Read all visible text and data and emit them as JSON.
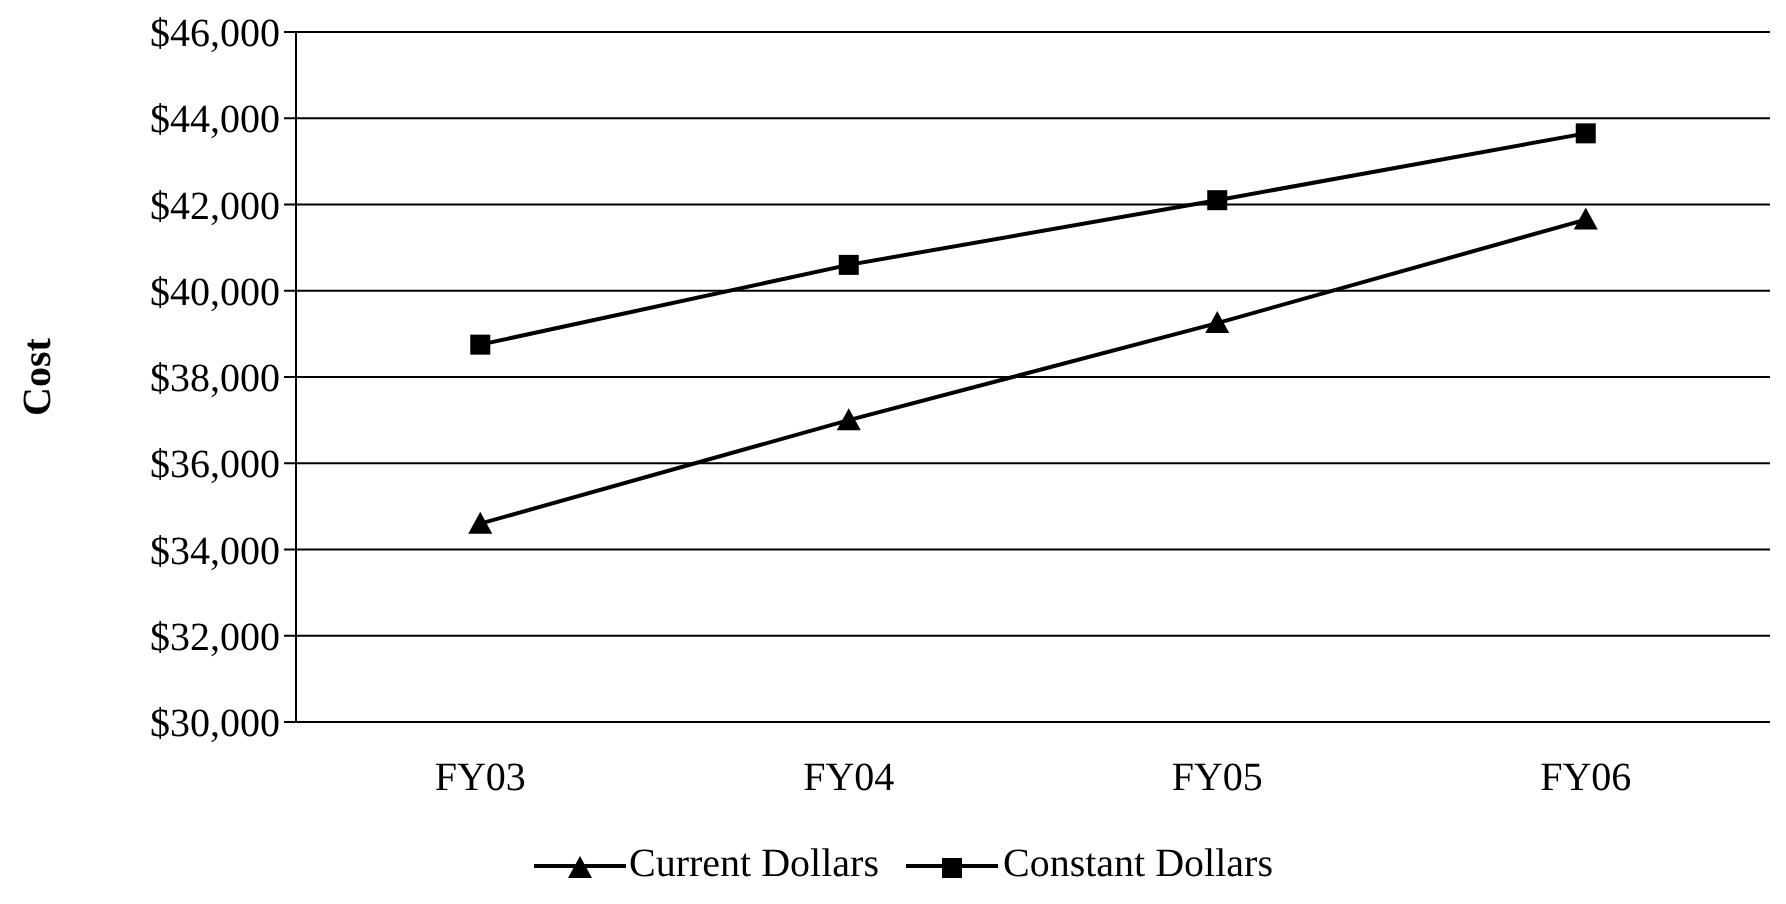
{
  "chart_data": {
    "type": "line",
    "ylabel": "Cost",
    "categories": [
      "FY03",
      "FY04",
      "FY05",
      "FY06"
    ],
    "series": [
      {
        "name": "Current Dollars",
        "color": "#000000",
        "marker": "triangle",
        "values": [
          34600,
          37000,
          39250,
          41650
        ]
      },
      {
        "name": "Constant Dollars",
        "color": "#000000",
        "marker": "square",
        "values": [
          38750,
          40600,
          42100,
          43650
        ]
      }
    ],
    "ylim": [
      30000,
      46000
    ],
    "yticks": [
      {
        "value": 30000,
        "label": "$30,000"
      },
      {
        "value": 32000,
        "label": "$32,000"
      },
      {
        "value": 34000,
        "label": "$34,000"
      },
      {
        "value": 36000,
        "label": "$36,000"
      },
      {
        "value": 38000,
        "label": "$38,000"
      },
      {
        "value": 40000,
        "label": "$40,000"
      },
      {
        "value": 42000,
        "label": "$42,000"
      },
      {
        "value": 44000,
        "label": "$44,000"
      },
      {
        "value": 46000,
        "label": "$46,000"
      }
    ],
    "grid": "y",
    "legend": "bottom"
  }
}
